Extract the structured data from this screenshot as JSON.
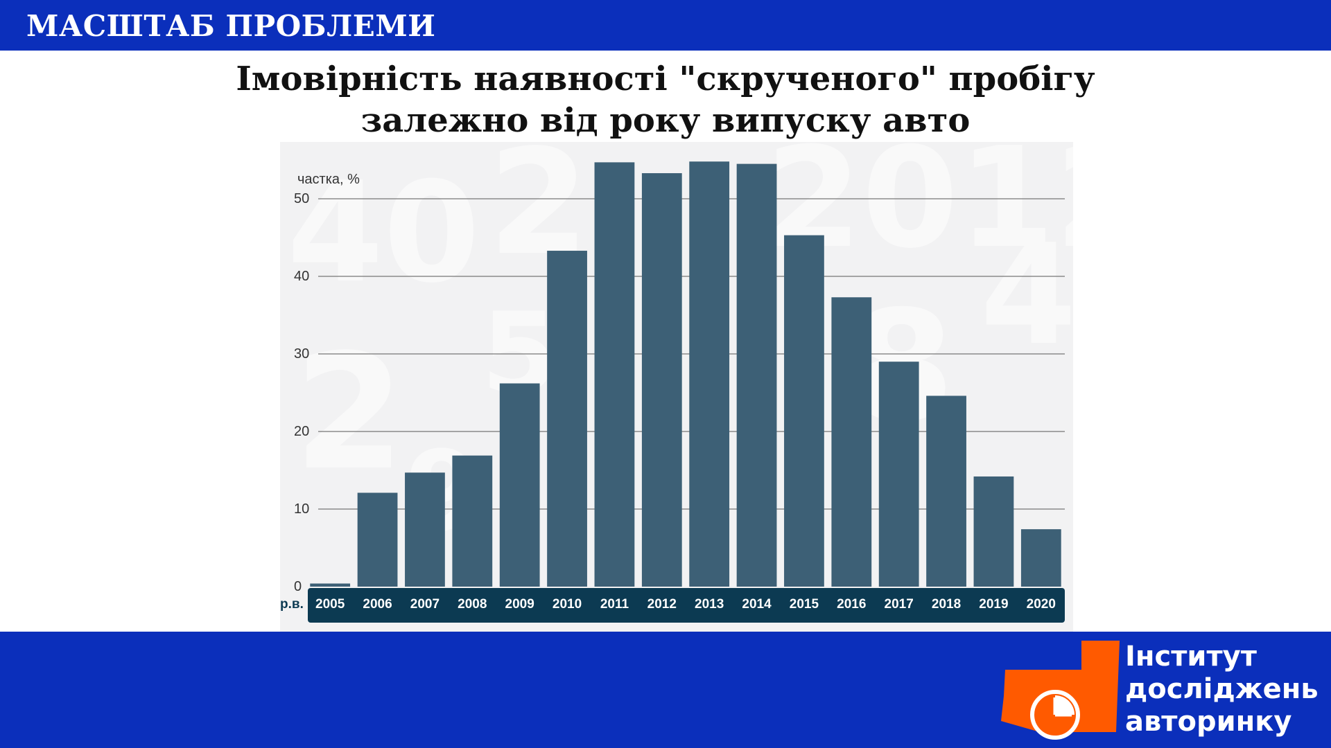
{
  "header": {
    "section_title": "МАСШТАБ ПРОБЛЕМИ"
  },
  "slide": {
    "title_line1": "Імовірність наявності \"скрученого\" пробігу",
    "title_line2": "залежно від року випуску авто"
  },
  "chart_data": {
    "type": "bar",
    "title": "",
    "ylabel": "частка, %",
    "xlabel": "р.в.",
    "ylim": [
      0,
      55
    ],
    "yticks": [
      0,
      10,
      20,
      30,
      40,
      50
    ],
    "grid": true,
    "categories": [
      "2005",
      "2006",
      "2007",
      "2008",
      "2009",
      "2010",
      "2011",
      "2012",
      "2013",
      "2014",
      "2015",
      "2016",
      "2017",
      "2018",
      "2019",
      "2020"
    ],
    "values": [
      0.4,
      12.1,
      14.7,
      16.9,
      26.2,
      43.3,
      54.7,
      53.3,
      54.8,
      54.5,
      45.3,
      37.3,
      29.0,
      24.6,
      14.2,
      7.4
    ],
    "colors": {
      "bar": "#3d6076",
      "axis_band": "#0c3a52",
      "label": "#0c3a52"
    }
  },
  "logo": {
    "line1": "Інститут",
    "line2": "досліджень",
    "line3": "авторинку",
    "accent_color": "#ff5a00"
  }
}
